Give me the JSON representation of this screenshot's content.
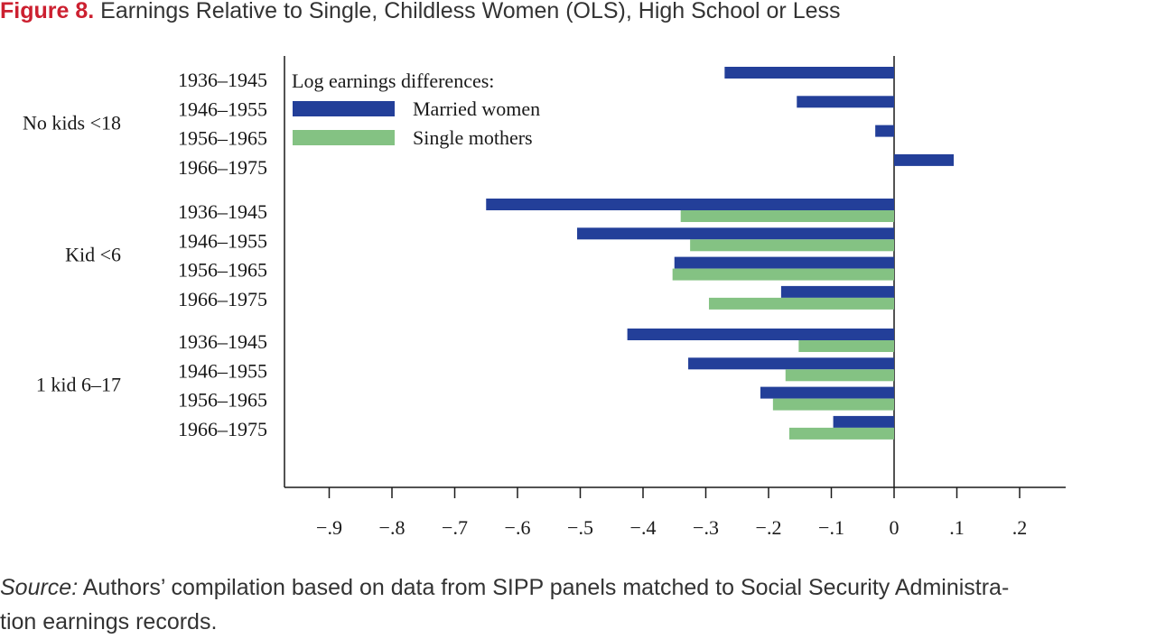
{
  "figure": {
    "label": "Figure 8.",
    "title": "Earnings Relative to Single, Childless Women (OLS), High School or Less"
  },
  "source": {
    "label": "Source:",
    "text": "Authors’ compilation based on data from SIPP panels matched to Social Security Administra-",
    "text2": "tion earnings records."
  },
  "chart_data": {
    "type": "bar",
    "orientation": "horizontal",
    "legend_title": "Log earnings differences:",
    "legend_position": "top-left",
    "xlim": [
      -0.97,
      0.27
    ],
    "x_ticks": [
      -0.9,
      -0.8,
      -0.7,
      -0.6,
      -0.5,
      -0.4,
      -0.3,
      -0.2,
      -0.1,
      0,
      0.1,
      0.2
    ],
    "x_tick_labels": [
      "−.9",
      "−.8",
      "−.7",
      "−.6",
      "−.5",
      "−.4",
      "−.3",
      "−.2",
      "−.1",
      "0",
      ".1",
      ".2"
    ],
    "grid": false,
    "colors": {
      "married": "#233f99",
      "single": "#84c283"
    },
    "groups": [
      {
        "name": "No kids <18",
        "categories": [
          "1936–1945",
          "1946–1955",
          "1956–1965",
          "1966–1975"
        ],
        "series": [
          {
            "name": "Married women",
            "values": [
              -0.27,
              -0.155,
              -0.03,
              0.095
            ]
          },
          {
            "name": "Single mothers",
            "values": [
              null,
              null,
              null,
              null
            ]
          }
        ]
      },
      {
        "name": "Kid <6",
        "categories": [
          "1936–1945",
          "1946–1955",
          "1956–1965",
          "1966–1975"
        ],
        "series": [
          {
            "name": "Married women",
            "values": [
              -0.65,
              -0.505,
              -0.35,
              -0.18
            ]
          },
          {
            "name": "Single mothers",
            "values": [
              -0.34,
              -0.325,
              -0.353,
              -0.295
            ]
          }
        ]
      },
      {
        "name": "1 kid 6–17",
        "categories": [
          "1936–1945",
          "1946–1955",
          "1956–1965",
          "1966–1975"
        ],
        "series": [
          {
            "name": "Married women",
            "values": [
              -0.425,
              -0.328,
              -0.213,
              -0.097
            ]
          },
          {
            "name": "Single mothers",
            "values": [
              -0.152,
              -0.173,
              -0.193,
              -0.167
            ]
          }
        ]
      }
    ]
  }
}
